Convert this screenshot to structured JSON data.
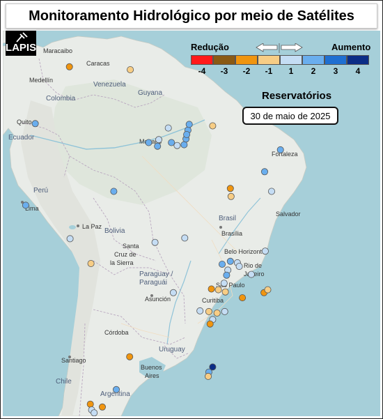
{
  "title": "Monitoramento Hidrológico por meio de Satélites",
  "logo_text": "LAPIS",
  "legend": {
    "reduction_label": "Redução",
    "increase_label": "Aumento",
    "classes": [
      {
        "value": "-4",
        "color": "#ff1a1a"
      },
      {
        "value": "-3",
        "color": "#8a5a14"
      },
      {
        "value": "-2",
        "color": "#f0950f"
      },
      {
        "value": "-1",
        "color": "#f7cd85"
      },
      {
        "value": "1",
        "color": "#c5ddf4"
      },
      {
        "value": "2",
        "color": "#6aaeee"
      },
      {
        "value": "3",
        "color": "#1f6fd1"
      },
      {
        "value": "4",
        "color": "#0b2d86"
      }
    ]
  },
  "reservoirs_label": "Reservatórios",
  "date": "30 de maio de 2025",
  "places": {
    "maracaibo": "Maracaibo",
    "caracas": "Caracas",
    "medellin": "Medellín",
    "venezuela": "Venezuela",
    "colombia": "Colombia",
    "guyana": "Guyana",
    "quito": "Quito",
    "ecuador": "Ecuador",
    "manaus": "Manaus",
    "fortaleza": "Fortaleza",
    "peru": "Perú",
    "lima": "Lima",
    "la_paz": "La Paz",
    "bolivia": "Bolivia",
    "brasil": "Brasil",
    "brasilia": "Brasília",
    "salvador": "Salvador",
    "santa_cruz_1": "Santa",
    "santa_cruz_2": "Cruz de",
    "santa_cruz_3": "la Sierra",
    "belo_horizonte": "Belo Horizonte",
    "rio_1": "Rio de",
    "rio_2": "Janeiro",
    "paraguay_1": "Paraguay /",
    "paraguay_2": "Paraguái",
    "sao_paulo": "São Paulo",
    "asuncion": "Asunción",
    "curitiba": "Curitiba",
    "cordoba": "Córdoba",
    "uruguay": "Uruguay",
    "santiago": "Santiago",
    "buenos_1": "Buenos",
    "buenos_2": "Aires",
    "chile": "Chile",
    "argentina": "Argentina"
  },
  "reservoirs": [
    {
      "lon": -73.9,
      "lat": 8.3,
      "class": -2
    },
    {
      "lon": -64.3,
      "lat": 7.9,
      "class": -1
    },
    {
      "lon": -79.3,
      "lat": 0.5,
      "class": 2
    },
    {
      "lon": -61.4,
      "lat": -2.1,
      "class": 2
    },
    {
      "lon": -59.8,
      "lat": -1.7,
      "class": 1
    },
    {
      "lon": -60.0,
      "lat": -2.6,
      "class": 2
    },
    {
      "lon": -58.3,
      "lat": -0.1,
      "class": 1
    },
    {
      "lon": -57.8,
      "lat": -2.1,
      "class": 2
    },
    {
      "lon": -56.9,
      "lat": -2.5,
      "class": 1
    },
    {
      "lon": -55.8,
      "lat": -2.4,
      "class": 2
    },
    {
      "lon": -55.5,
      "lat": -1.6,
      "class": 2
    },
    {
      "lon": -55.2,
      "lat": -0.4,
      "class": 2
    },
    {
      "lon": -55.0,
      "lat": 0.4,
      "class": 2
    },
    {
      "lon": -55.4,
      "lat": -1.0,
      "class": 2
    },
    {
      "lon": -51.3,
      "lat": 0.2,
      "class": -1
    },
    {
      "lon": -40.6,
      "lat": -3.1,
      "class": 2
    },
    {
      "lon": -43.1,
      "lat": -6.1,
      "class": 2
    },
    {
      "lon": -48.5,
      "lat": -8.4,
      "class": -2
    },
    {
      "lon": -48.4,
      "lat": -9.5,
      "class": -1
    },
    {
      "lon": -42.0,
      "lat": -8.8,
      "class": 1
    },
    {
      "lon": -80.8,
      "lat": -10.7,
      "class": 2
    },
    {
      "lon": -66.9,
      "lat": -8.8,
      "class": 2
    },
    {
      "lon": -73.8,
      "lat": -15.3,
      "class": 1
    },
    {
      "lon": -60.4,
      "lat": -15.8,
      "class": 1
    },
    {
      "lon": -55.7,
      "lat": -15.2,
      "class": 1
    },
    {
      "lon": -43.0,
      "lat": -17.0,
      "class": 1
    },
    {
      "lon": -70.5,
      "lat": -18.7,
      "class": -1
    },
    {
      "lon": -49.8,
      "lat": -18.8,
      "class": 2
    },
    {
      "lon": -48.5,
      "lat": -18.4,
      "class": 2
    },
    {
      "lon": -47.4,
      "lat": -18.6,
      "class": 1
    },
    {
      "lon": -47.1,
      "lat": -19.1,
      "class": 1
    },
    {
      "lon": -48.9,
      "lat": -19.6,
      "class": 1
    },
    {
      "lon": -49.1,
      "lat": -20.3,
      "class": 2
    },
    {
      "lon": -45.2,
      "lat": -20.2,
      "class": 1
    },
    {
      "lon": -49.5,
      "lat": -21.4,
      "class": 1
    },
    {
      "lon": -51.5,
      "lat": -22.2,
      "class": -2
    },
    {
      "lon": -50.4,
      "lat": -22.3,
      "class": -1
    },
    {
      "lon": -49.3,
      "lat": -22.6,
      "class": -1
    },
    {
      "lon": -43.2,
      "lat": -22.7,
      "class": -2
    },
    {
      "lon": -42.6,
      "lat": -22.3,
      "class": -1
    },
    {
      "lon": -46.6,
      "lat": -23.4,
      "class": -2
    },
    {
      "lon": -57.5,
      "lat": -22.7,
      "class": 1
    },
    {
      "lon": -53.3,
      "lat": -25.2,
      "class": 1
    },
    {
      "lon": -51.9,
      "lat": -25.3,
      "class": -1
    },
    {
      "lon": -50.6,
      "lat": -25.5,
      "class": -1
    },
    {
      "lon": -49.4,
      "lat": -25.3,
      "class": 1
    },
    {
      "lon": -51.3,
      "lat": -26.4,
      "class": 1
    },
    {
      "lon": -51.7,
      "lat": -27.0,
      "class": -2
    },
    {
      "lon": -64.4,
      "lat": -31.5,
      "class": -2
    },
    {
      "lon": -51.3,
      "lat": -32.9,
      "class": 4
    },
    {
      "lon": -51.9,
      "lat": -33.6,
      "class": 2
    },
    {
      "lon": -52.0,
      "lat": -34.2,
      "class": -1
    },
    {
      "lon": -66.5,
      "lat": -36.0,
      "class": 2
    },
    {
      "lon": -70.6,
      "lat": -38.0,
      "class": -2
    },
    {
      "lon": -68.7,
      "lat": -38.4,
      "class": -2
    },
    {
      "lon": -70.4,
      "lat": -38.8,
      "class": 1
    },
    {
      "lon": -70.0,
      "lat": -39.2,
      "class": 1
    }
  ]
}
